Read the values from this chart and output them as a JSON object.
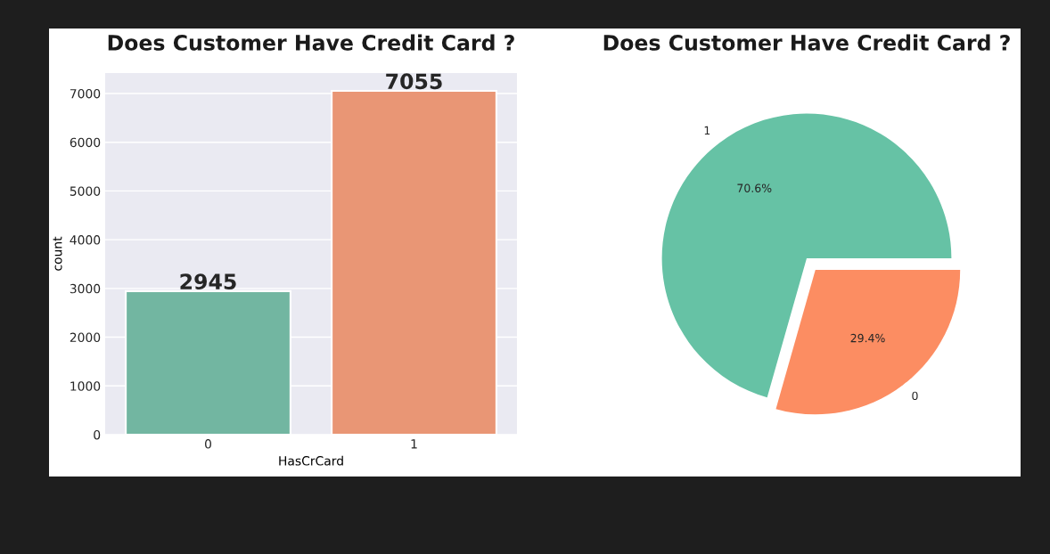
{
  "chart_data": [
    {
      "type": "bar",
      "title": "Does Customer Have Credit Card ?",
      "xlabel": "HasCrCard",
      "ylabel": "count",
      "categories": [
        "0",
        "1"
      ],
      "values": [
        2945,
        7055
      ],
      "colors": [
        "#72b6a1",
        "#e99675"
      ],
      "ylim": [
        0,
        7420
      ],
      "yticks": [
        0,
        1000,
        2000,
        3000,
        4000,
        5000,
        6000,
        7000
      ],
      "grid": "y",
      "data_labels": true
    },
    {
      "type": "pie",
      "title": "Does Customer Have Credit Card ?",
      "categories": [
        "1",
        "0"
      ],
      "values": [
        70.6,
        29.4
      ],
      "colors": [
        "#66c2a5",
        "#fc8d62"
      ],
      "value_labels": [
        "70.6%",
        "29.4%"
      ]
    }
  ]
}
